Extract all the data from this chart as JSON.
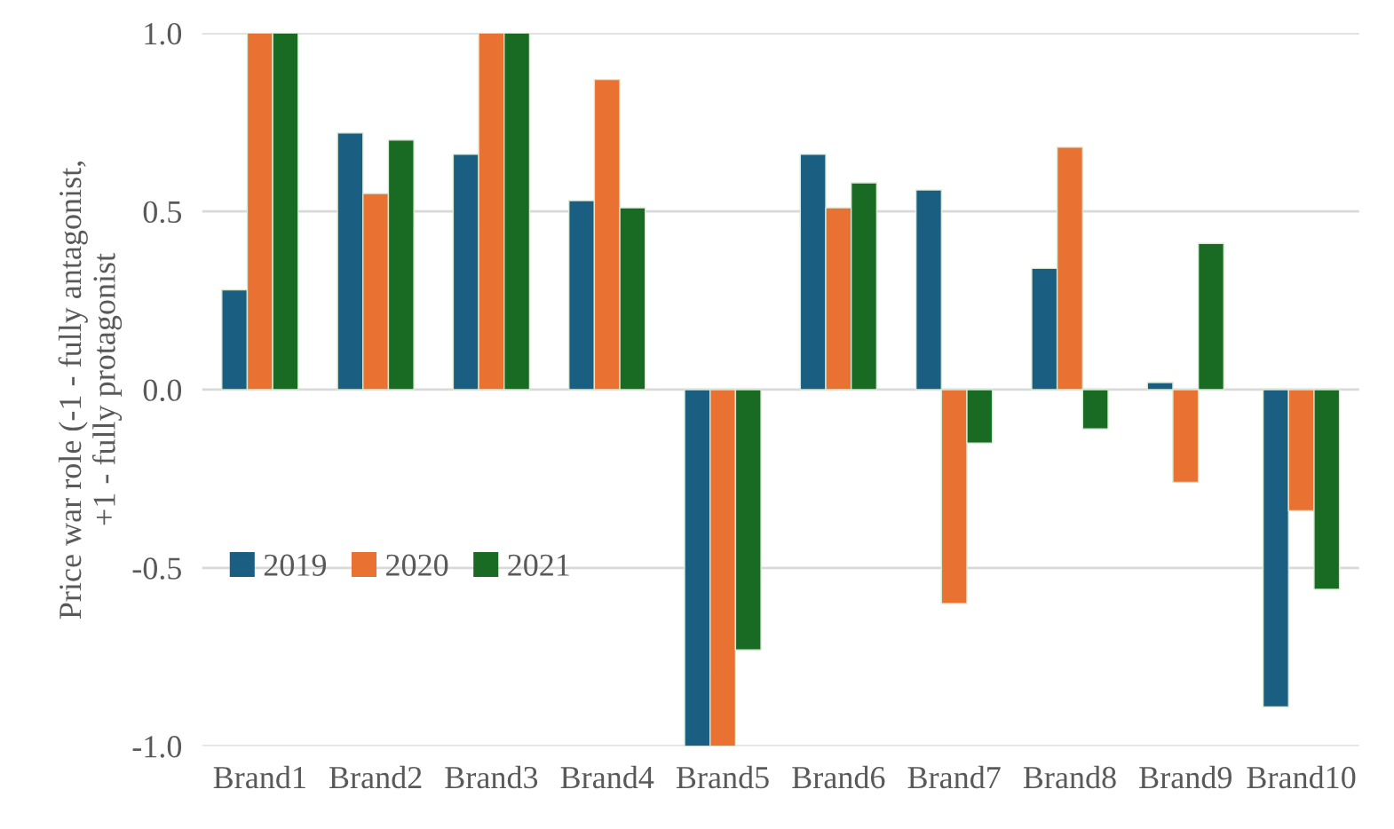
{
  "chart_data": {
    "type": "bar",
    "ylabel": "Price war role (-1 - fully antagonist,\n+1 - fully protagonist",
    "categories": [
      "Brand1",
      "Brand2",
      "Brand3",
      "Brand4",
      "Brand5",
      "Brand6",
      "Brand7",
      "Brand8",
      "Brand9",
      "Brand10"
    ],
    "series": [
      {
        "name": "2019",
        "color": "#1a5f82",
        "values": [
          0.28,
          0.72,
          0.66,
          0.53,
          -1.0,
          0.66,
          0.56,
          0.34,
          0.02,
          -0.89
        ]
      },
      {
        "name": "2020",
        "color": "#e97132",
        "values": [
          1.0,
          0.55,
          1.0,
          0.87,
          -1.0,
          0.51,
          -0.6,
          0.68,
          -0.26,
          -0.34
        ]
      },
      {
        "name": "2021",
        "color": "#196b24",
        "values": [
          1.0,
          0.7,
          1.0,
          0.51,
          -0.73,
          0.58,
          -0.15,
          -0.11,
          0.41,
          -0.56
        ]
      }
    ],
    "ylim": [
      -1.0,
      1.0
    ],
    "yticks": [
      {
        "value": -1.0,
        "label": "-1.0"
      },
      {
        "value": -0.5,
        "label": "-0.5"
      },
      {
        "value": 0.0,
        "label": "0.0"
      },
      {
        "value": 0.5,
        "label": "0.5"
      },
      {
        "value": 1.0,
        "label": "1.0"
      }
    ],
    "grid": "y",
    "legend": "left"
  }
}
